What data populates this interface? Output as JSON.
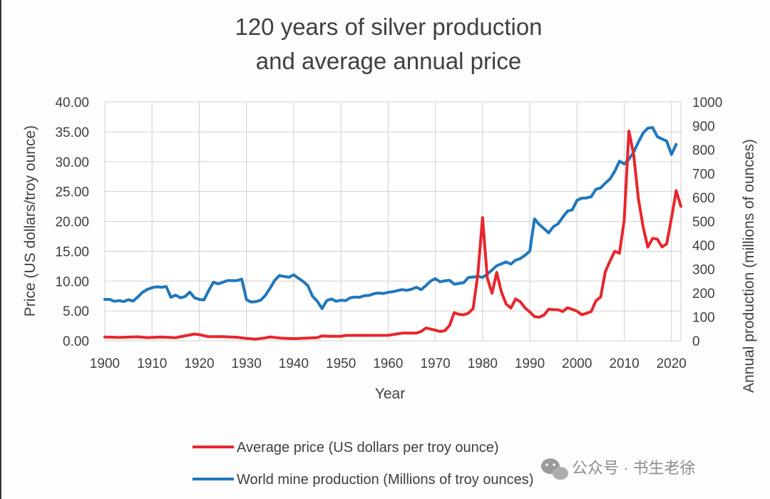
{
  "watermark_text": "公众号 · 书生老徐",
  "chart_data": {
    "type": "line",
    "title_lines": [
      "120 years of silver production",
      "and average annual price"
    ],
    "xlabel": "Year",
    "ylabel_left": "Price (US dollars/troy ounce)",
    "ylabel_right": "Annual production (millions of ounces)",
    "xlim": [
      1900,
      2022
    ],
    "x_ticks": [
      1900,
      1910,
      1920,
      1930,
      1940,
      1950,
      1960,
      1970,
      1980,
      1990,
      2000,
      2010,
      2020
    ],
    "y_left": {
      "lim": [
        0,
        40
      ],
      "ticks": [
        0,
        5,
        10,
        15,
        20,
        25,
        30,
        35,
        40
      ],
      "tick_labels": [
        "0.00",
        "5.00",
        "10.00",
        "15.00",
        "20.00",
        "25.00",
        "30.00",
        "35.00",
        "40.00"
      ]
    },
    "y_right": {
      "lim": [
        0,
        1000
      ],
      "ticks": [
        0,
        100,
        200,
        300,
        400,
        500,
        600,
        700,
        800,
        900,
        1000
      ],
      "tick_labels": [
        "0",
        "100",
        "200",
        "300",
        "400",
        "500",
        "600",
        "700",
        "800",
        "900",
        "1000"
      ]
    },
    "grid": true,
    "legend_position": "bottom",
    "series": [
      {
        "name": "Average price (US dollars per troy ounce)",
        "color": "#e8262b",
        "axis": "left",
        "points": [
          [
            1900,
            0.62
          ],
          [
            1903,
            0.55
          ],
          [
            1905,
            0.61
          ],
          [
            1907,
            0.66
          ],
          [
            1909,
            0.52
          ],
          [
            1912,
            0.62
          ],
          [
            1915,
            0.51
          ],
          [
            1917,
            0.82
          ],
          [
            1919,
            1.12
          ],
          [
            1920,
            1.01
          ],
          [
            1922,
            0.68
          ],
          [
            1925,
            0.69
          ],
          [
            1928,
            0.58
          ],
          [
            1930,
            0.38
          ],
          [
            1932,
            0.28
          ],
          [
            1934,
            0.48
          ],
          [
            1935,
            0.64
          ],
          [
            1937,
            0.45
          ],
          [
            1940,
            0.35
          ],
          [
            1943,
            0.45
          ],
          [
            1945,
            0.52
          ],
          [
            1946,
            0.8
          ],
          [
            1948,
            0.74
          ],
          [
            1950,
            0.74
          ],
          [
            1951,
            0.89
          ],
          [
            1955,
            0.89
          ],
          [
            1960,
            0.91
          ],
          [
            1963,
            1.28
          ],
          [
            1966,
            1.29
          ],
          [
            1967,
            1.55
          ],
          [
            1968,
            2.14
          ],
          [
            1970,
            1.77
          ],
          [
            1971,
            1.55
          ],
          [
            1972,
            1.68
          ],
          [
            1973,
            2.56
          ],
          [
            1974,
            4.71
          ],
          [
            1975,
            4.42
          ],
          [
            1976,
            4.35
          ],
          [
            1977,
            4.62
          ],
          [
            1978,
            5.4
          ],
          [
            1979,
            11.09
          ],
          [
            1980,
            20.63
          ],
          [
            1981,
            10.52
          ],
          [
            1982,
            7.95
          ],
          [
            1983,
            11.44
          ],
          [
            1984,
            8.14
          ],
          [
            1985,
            6.14
          ],
          [
            1986,
            5.47
          ],
          [
            1987,
            7.01
          ],
          [
            1988,
            6.53
          ],
          [
            1989,
            5.5
          ],
          [
            1990,
            4.82
          ],
          [
            1991,
            4.04
          ],
          [
            1992,
            3.94
          ],
          [
            1993,
            4.3
          ],
          [
            1994,
            5.28
          ],
          [
            1995,
            5.2
          ],
          [
            1996,
            5.19
          ],
          [
            1997,
            4.89
          ],
          [
            1998,
            5.54
          ],
          [
            1999,
            5.25
          ],
          [
            2000,
            4.95
          ],
          [
            2001,
            4.37
          ],
          [
            2002,
            4.6
          ],
          [
            2003,
            4.88
          ],
          [
            2004,
            6.67
          ],
          [
            2005,
            7.32
          ],
          [
            2006,
            11.55
          ],
          [
            2007,
            13.38
          ],
          [
            2008,
            14.99
          ],
          [
            2009,
            14.67
          ],
          [
            2010,
            20.19
          ],
          [
            2011,
            35.12
          ],
          [
            2012,
            31.15
          ],
          [
            2013,
            23.79
          ],
          [
            2014,
            19.08
          ],
          [
            2015,
            15.68
          ],
          [
            2016,
            17.14
          ],
          [
            2017,
            17.04
          ],
          [
            2018,
            15.71
          ],
          [
            2019,
            16.21
          ],
          [
            2020,
            20.55
          ],
          [
            2021,
            25.14
          ],
          [
            2022,
            22.5
          ]
        ]
      },
      {
        "name": "World mine production (Millions of troy ounces)",
        "color": "#1f77bd",
        "axis": "right",
        "points": [
          [
            1900,
            173
          ],
          [
            1901,
            173
          ],
          [
            1902,
            165
          ],
          [
            1903,
            168
          ],
          [
            1904,
            164
          ],
          [
            1905,
            172
          ],
          [
            1906,
            166
          ],
          [
            1907,
            184
          ],
          [
            1908,
            203
          ],
          [
            1909,
            215
          ],
          [
            1910,
            222
          ],
          [
            1911,
            226
          ],
          [
            1912,
            224
          ],
          [
            1913,
            227
          ],
          [
            1914,
            182
          ],
          [
            1915,
            191
          ],
          [
            1916,
            180
          ],
          [
            1917,
            185
          ],
          [
            1918,
            204
          ],
          [
            1919,
            180
          ],
          [
            1920,
            173
          ],
          [
            1921,
            171
          ],
          [
            1922,
            210
          ],
          [
            1923,
            245
          ],
          [
            1924,
            238
          ],
          [
            1925,
            245
          ],
          [
            1926,
            252
          ],
          [
            1927,
            252
          ],
          [
            1928,
            252
          ],
          [
            1929,
            258
          ],
          [
            1930,
            172
          ],
          [
            1931,
            162
          ],
          [
            1932,
            164
          ],
          [
            1933,
            170
          ],
          [
            1934,
            190
          ],
          [
            1935,
            220
          ],
          [
            1936,
            253
          ],
          [
            1937,
            273
          ],
          [
            1938,
            269
          ],
          [
            1939,
            266
          ],
          [
            1940,
            276
          ],
          [
            1941,
            262
          ],
          [
            1942,
            248
          ],
          [
            1943,
            230
          ],
          [
            1944,
            186
          ],
          [
            1945,
            166
          ],
          [
            1946,
            135
          ],
          [
            1947,
            168
          ],
          [
            1948,
            175
          ],
          [
            1949,
            165
          ],
          [
            1950,
            170
          ],
          [
            1951,
            168
          ],
          [
            1952,
            180
          ],
          [
            1953,
            183
          ],
          [
            1954,
            182
          ],
          [
            1955,
            189
          ],
          [
            1956,
            190
          ],
          [
            1957,
            197
          ],
          [
            1958,
            200
          ],
          [
            1959,
            198
          ],
          [
            1960,
            203
          ],
          [
            1961,
            205
          ],
          [
            1962,
            210
          ],
          [
            1963,
            214
          ],
          [
            1964,
            211
          ],
          [
            1965,
            216
          ],
          [
            1966,
            224
          ],
          [
            1967,
            214
          ],
          [
            1968,
            231
          ],
          [
            1969,
            250
          ],
          [
            1970,
            260
          ],
          [
            1971,
            247
          ],
          [
            1972,
            251
          ],
          [
            1973,
            253
          ],
          [
            1974,
            237
          ],
          [
            1975,
            240
          ],
          [
            1976,
            243
          ],
          [
            1977,
            265
          ],
          [
            1978,
            267
          ],
          [
            1979,
            270
          ],
          [
            1980,
            265
          ],
          [
            1981,
            279
          ],
          [
            1982,
            296
          ],
          [
            1983,
            314
          ],
          [
            1984,
            322
          ],
          [
            1985,
            330
          ],
          [
            1986,
            321
          ],
          [
            1987,
            338
          ],
          [
            1988,
            344
          ],
          [
            1989,
            358
          ],
          [
            1990,
            375
          ],
          [
            1991,
            510
          ],
          [
            1992,
            487
          ],
          [
            1993,
            470
          ],
          [
            1994,
            452
          ],
          [
            1995,
            478
          ],
          [
            1996,
            490
          ],
          [
            1997,
            518
          ],
          [
            1998,
            543
          ],
          [
            1999,
            548
          ],
          [
            2000,
            588
          ],
          [
            2001,
            597
          ],
          [
            2002,
            598
          ],
          [
            2003,
            603
          ],
          [
            2004,
            634
          ],
          [
            2005,
            640
          ],
          [
            2006,
            660
          ],
          [
            2007,
            678
          ],
          [
            2008,
            710
          ],
          [
            2009,
            752
          ],
          [
            2010,
            740
          ],
          [
            2011,
            760
          ],
          [
            2012,
            790
          ],
          [
            2013,
            832
          ],
          [
            2014,
            870
          ],
          [
            2015,
            890
          ],
          [
            2016,
            893
          ],
          [
            2017,
            855
          ],
          [
            2018,
            845
          ],
          [
            2019,
            836
          ],
          [
            2020,
            780
          ],
          [
            2021,
            822
          ]
        ]
      }
    ]
  }
}
